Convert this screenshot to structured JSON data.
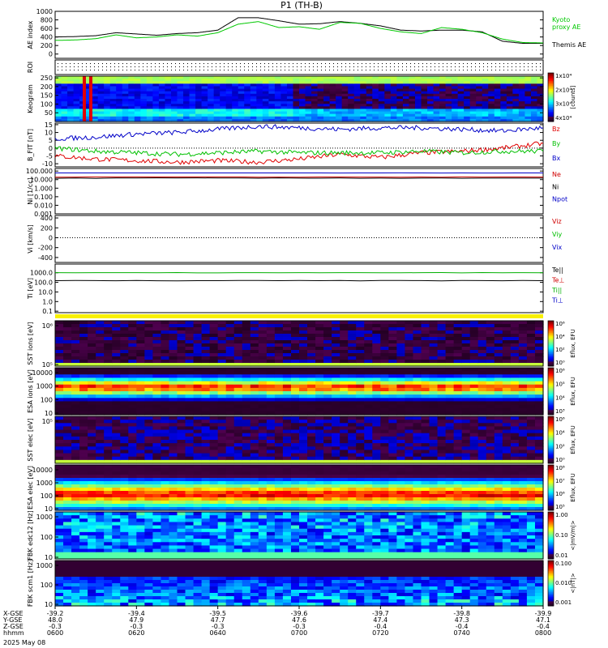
{
  "title": "P1  (TH-B)",
  "footer_date": "2025 May 08",
  "colors": {
    "kyoto": "#00c800",
    "themis": "#000000",
    "bz": "#e00000",
    "by": "#00c000",
    "bx": "#0000c8",
    "ne": "#d00000",
    "ni": "#000000",
    "npot": "#0000c8",
    "vx": "#0000c8",
    "vy": "#00c000",
    "vz": "#d00000",
    "te_perp": "#d00000",
    "ti_par": "#00b000",
    "ti_perp": "#0000c8"
  },
  "time_axis": {
    "labels": [
      {
        "x": "-39.2",
        "y": "48.0",
        "z": "-0.3",
        "hhmm": "0600"
      },
      {
        "x": "-39.4",
        "y": "47.9",
        "z": "-0.3",
        "hhmm": "0620"
      },
      {
        "x": "-39.5",
        "y": "47.7",
        "z": "-0.3",
        "hhmm": "0640"
      },
      {
        "x": "-39.6",
        "y": "47.6",
        "z": "-0.3",
        "hhmm": "0700"
      },
      {
        "x": "-39.7",
        "y": "47.4",
        "z": "-0.4",
        "hhmm": "0720"
      },
      {
        "x": "-39.8",
        "y": "47.3",
        "z": "-0.4",
        "hhmm": "0740"
      },
      {
        "x": "-39.9",
        "y": "47.1",
        "z": "-0.4",
        "hhmm": "0800"
      }
    ],
    "row_names": [
      "X-GSE",
      "Y-GSE",
      "Z-GSE",
      "hhmm"
    ]
  },
  "chart_data": [
    {
      "type": "line",
      "panel": "ae",
      "ylabel": "AE index",
      "ylim": [
        -100,
        1000
      ],
      "yticks": [
        "0",
        "200",
        "400",
        "600",
        "800",
        "1000"
      ],
      "ytick_values": [
        0,
        200,
        400,
        600,
        800,
        1000
      ],
      "legend": [
        "Kyoto proxy AE",
        "Themis AE"
      ],
      "series": [
        {
          "name": "Kyoto proxy AE",
          "x": [
            0,
            5,
            10,
            15,
            20,
            25,
            30,
            35,
            40,
            45,
            50,
            55,
            60,
            65,
            70,
            75,
            80,
            85,
            90,
            95,
            100,
            105,
            110,
            115,
            120
          ],
          "values": [
            320,
            330,
            360,
            450,
            380,
            400,
            450,
            420,
            500,
            700,
            760,
            620,
            640,
            580,
            740,
            720,
            600,
            520,
            480,
            620,
            580,
            500,
            350,
            270,
            260
          ]
        },
        {
          "name": "Themis AE",
          "x": [
            0,
            5,
            10,
            15,
            20,
            25,
            30,
            35,
            40,
            45,
            50,
            55,
            60,
            65,
            70,
            75,
            80,
            85,
            90,
            95,
            100,
            105,
            110,
            115,
            120
          ],
          "values": [
            400,
            410,
            430,
            500,
            470,
            440,
            480,
            500,
            560,
            850,
            850,
            780,
            700,
            710,
            760,
            720,
            660,
            560,
            540,
            560,
            560,
            520,
            300,
            250,
            250
          ]
        }
      ]
    },
    {
      "type": "heatmap",
      "panel": "roi",
      "ylabel": "ROI",
      "note": "dotted rows"
    },
    {
      "type": "heatmap",
      "panel": "keogram",
      "ylabel": "Keogram",
      "yticks": [
        "50",
        "100",
        "150",
        "200",
        "250"
      ],
      "ytick_values": [
        50,
        100,
        150,
        200,
        250
      ],
      "ylim": [
        0,
        260
      ],
      "colorbar": {
        "labels": [
          "1x10⁴",
          "2x10⁴",
          "3x10⁴",
          "4x10⁴"
        ],
        "unit": "[counts]"
      }
    },
    {
      "type": "line",
      "panel": "bfield",
      "ylabel": "B_FIT [nT]",
      "ylim": [
        -12,
        16
      ],
      "yticks": [
        "-10",
        "-5",
        "0",
        "5",
        "10",
        "15"
      ],
      "ytick_values": [
        -10,
        -5,
        0,
        5,
        10,
        15
      ],
      "legend": [
        "Bz",
        "By",
        "Bx"
      ],
      "series": [
        {
          "name": "Bz",
          "x": [
            0,
            10,
            20,
            30,
            40,
            50,
            60,
            70,
            80,
            90,
            100,
            110,
            120
          ],
          "values": [
            -5,
            -7,
            -8,
            -9,
            -8,
            -9,
            -7,
            -4,
            -6,
            -3,
            -2,
            0,
            3
          ]
        },
        {
          "name": "By",
          "x": [
            0,
            10,
            20,
            30,
            40,
            50,
            60,
            70,
            80,
            90,
            100,
            110,
            120
          ],
          "values": [
            0,
            -2,
            -3,
            -4,
            -3,
            -2,
            -3,
            -3,
            -3,
            -2,
            -3,
            -2,
            -2
          ]
        },
        {
          "name": "Bx",
          "x": [
            0,
            10,
            20,
            30,
            40,
            50,
            60,
            70,
            80,
            90,
            100,
            110,
            120
          ],
          "values": [
            6,
            7,
            9,
            10,
            12,
            14,
            13,
            12,
            13,
            13,
            12,
            11,
            13
          ]
        }
      ]
    },
    {
      "type": "line",
      "panel": "density",
      "ylabel": "Ni [1/cc]",
      "scale": "log",
      "ylim": [
        0.001,
        200
      ],
      "yticks": [
        "100.000",
        "10.000",
        "1.000",
        "0.100",
        "0.010",
        "0.001"
      ],
      "ytick_values": [
        100,
        10,
        1,
        0.1,
        0.01,
        0.001
      ],
      "legend": [
        "Ne",
        "Ni",
        "Npot"
      ],
      "series": [
        {
          "name": "Npot",
          "x": [
            0,
            120
          ],
          "values": [
            60,
            60
          ]
        },
        {
          "name": "Ne",
          "x": [
            0,
            120
          ],
          "values": [
            20,
            20
          ]
        },
        {
          "name": "Ni",
          "x": [
            0,
            120
          ],
          "values": [
            15,
            15
          ]
        }
      ]
    },
    {
      "type": "line",
      "panel": "velocity",
      "ylabel": "Vi [km/s]",
      "ylim": [
        -500,
        450
      ],
      "yticks": [
        "400",
        "200",
        "0",
        "-200",
        "-400"
      ],
      "ytick_values": [
        400,
        200,
        0,
        -200,
        -400
      ],
      "legend": [
        "Viz",
        "Viy",
        "Vix"
      ]
    },
    {
      "type": "line",
      "panel": "temperature",
      "ylabel": "Ti [eV]",
      "scale": "log",
      "ylim": [
        0.07,
        8000
      ],
      "yticks": [
        "1000.0",
        "100.0",
        "10.0",
        "1.0",
        "0.1"
      ],
      "ytick_values": [
        1000,
        100,
        10,
        1,
        0.1
      ],
      "legend": [
        "Te||",
        "Te⊥",
        "Ti||",
        "Ti⊥"
      ],
      "series": [
        {
          "name": "Ti||",
          "x": [
            0,
            120
          ],
          "values": [
            1000,
            1000
          ]
        },
        {
          "name": "Te||",
          "x": [
            0,
            120
          ],
          "values": [
            150,
            150
          ]
        }
      ]
    },
    {
      "type": "heatmap",
      "panel": "sst_ion",
      "ylabel": "SST ions [eV]",
      "yticks": [
        "10⁶",
        "10⁵"
      ],
      "colorbar": {
        "labels": [
          "10⁶",
          "10⁴",
          "10²",
          "10⁰"
        ],
        "unit": "Eflux, EFU"
      }
    },
    {
      "type": "heatmap",
      "panel": "esa_ion",
      "ylabel": "ESA ions [eV]",
      "yticks": [
        "10000",
        "1000",
        "100",
        "10"
      ],
      "colorbar": {
        "labels": [
          "10⁶",
          "10⁵",
          "10⁴",
          "10³"
        ],
        "unit": "Eflux, EFU"
      }
    },
    {
      "type": "heatmap",
      "panel": "sst_elec",
      "ylabel": "SST elec [eV]",
      "yticks": [
        "10⁵"
      ],
      "colorbar": {
        "labels": [
          "10⁶",
          "10⁴",
          "10²",
          "10⁰"
        ],
        "unit": "Eflux, EFU"
      }
    },
    {
      "type": "heatmap",
      "panel": "esa_elec",
      "ylabel": "ESA elec [eV]",
      "yticks": [
        "10000",
        "1000",
        "100",
        "10"
      ],
      "colorbar": {
        "labels": [
          "10⁸",
          "10⁷",
          "10⁶",
          "10⁵"
        ],
        "unit": "Eflux, EFU"
      }
    },
    {
      "type": "heatmap",
      "panel": "fbk_e",
      "ylabel": "FBK edc12 [Hz]",
      "yticks": [
        "1000",
        "100",
        "10"
      ],
      "colorbar": {
        "labels": [
          "1.00",
          "0.10",
          "0.01"
        ],
        "unit": "<|mV/m|>"
      }
    },
    {
      "type": "heatmap",
      "panel": "fbk_b",
      "ylabel": "FBK scm1 [Hz]",
      "yticks": [
        "1000",
        "100",
        "10"
      ],
      "colorbar": {
        "labels": [
          "0.100",
          "0.010",
          "0.001"
        ],
        "unit": "<|nT|>"
      }
    }
  ]
}
